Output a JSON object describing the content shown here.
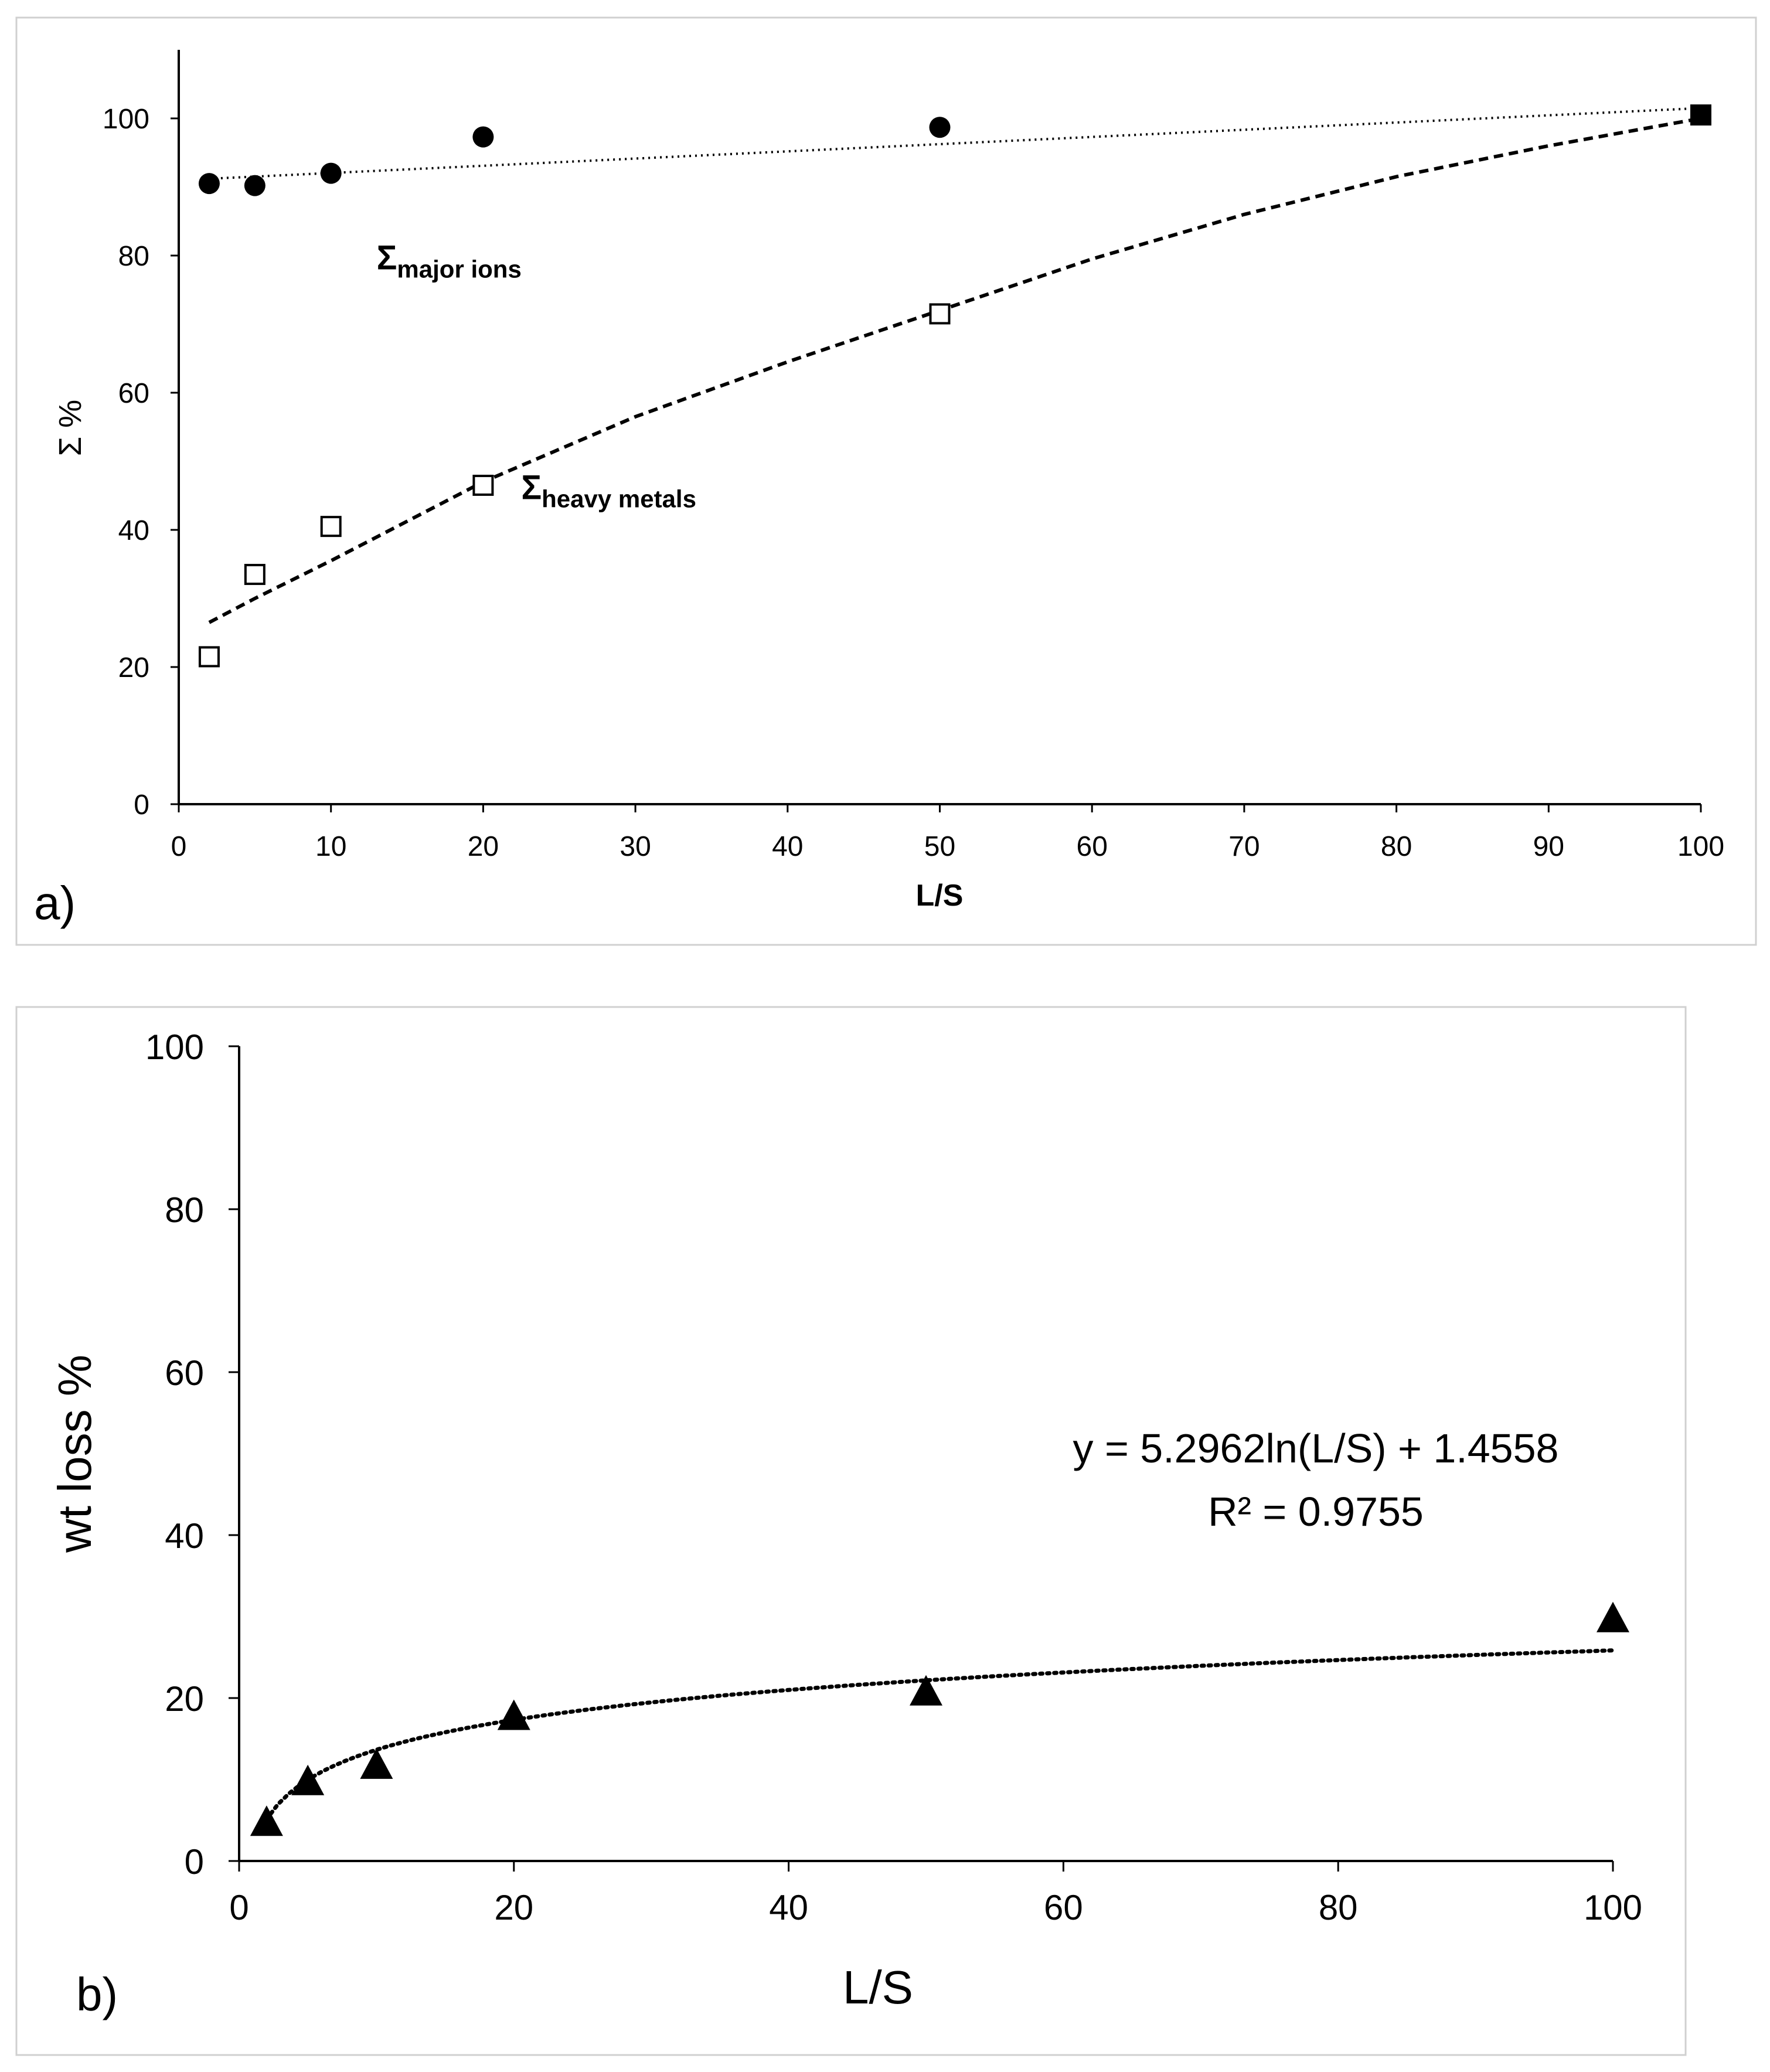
{
  "chart_data": [
    {
      "type": "scatter",
      "panel_label": "a)",
      "xlabel": "L/S",
      "ylabel": "Σ %",
      "xlim": [
        0,
        100
      ],
      "ylim": [
        0,
        110
      ],
      "xticks": [
        0,
        10,
        20,
        30,
        40,
        50,
        60,
        70,
        80,
        90,
        100
      ],
      "yticks": [
        0,
        20,
        40,
        60,
        80,
        100
      ],
      "grid": false,
      "series": [
        {
          "label_main": "Σ",
          "label_sub": "major ions",
          "marker": "filled-circle",
          "trend": "linear-dotted",
          "x": [
            2,
            5,
            10,
            20,
            50
          ],
          "y": [
            90.5,
            90.2,
            92,
            97.3,
            98.7
          ]
        },
        {
          "label_main": "Σ",
          "label_sub": "heavy metals",
          "marker": "open-square",
          "trend": "dashed-curve",
          "x": [
            2,
            5,
            10,
            20,
            50
          ],
          "y": [
            21.5,
            33.5,
            40.5,
            46.5,
            71.5
          ]
        },
        {
          "marker": "filled-square",
          "x": [
            100
          ],
          "y": [
            100.5
          ]
        }
      ],
      "trendlines": [
        {
          "style": "dotted",
          "x": [
            2,
            100
          ],
          "y": [
            91.2,
            101.5
          ]
        },
        {
          "style": "dashed",
          "x": [
            2,
            5,
            10,
            20,
            30,
            40,
            50,
            60,
            70,
            80,
            90,
            100
          ],
          "y": [
            26.5,
            30,
            35.5,
            47,
            56.5,
            64.5,
            72,
            79.5,
            86,
            91.5,
            96,
            100
          ]
        }
      ],
      "annotation_positions": {
        "major_ions": {
          "x": 13,
          "y": 78
        },
        "heavy_metals": {
          "x": 22.5,
          "y": 44.5
        }
      }
    },
    {
      "type": "scatter",
      "panel_label": "b)",
      "xlabel": "L/S",
      "ylabel": "wt loss %",
      "xlim": [
        0,
        100
      ],
      "ylim": [
        0,
        100
      ],
      "xticks": [
        0,
        20,
        40,
        60,
        80,
        100
      ],
      "yticks": [
        0,
        20,
        40,
        60,
        80,
        100
      ],
      "grid": false,
      "series": [
        {
          "marker": "filled-triangle",
          "x": [
            2,
            5,
            10,
            20,
            50,
            100
          ],
          "y": [
            4.5,
            9.5,
            11.5,
            17.5,
            20.5,
            29.5
          ]
        }
      ],
      "trendline": {
        "type": "logarithmic",
        "style": "dotted",
        "a": 5.2962,
        "b": 1.4558,
        "x_range": [
          2,
          100
        ]
      },
      "equation": "y = 5.2962ln(L/S) + 1.4558",
      "r_squared": "R² = 0.9755"
    }
  ]
}
